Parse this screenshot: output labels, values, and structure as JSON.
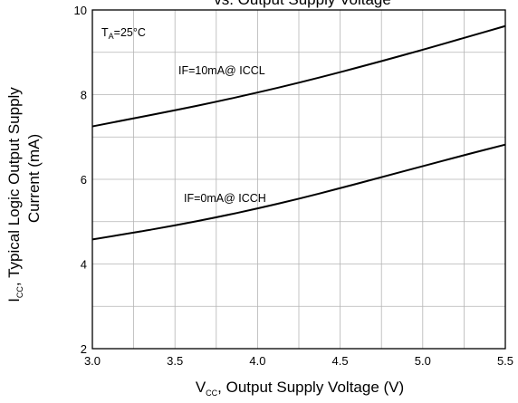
{
  "chart_data": {
    "type": "line",
    "title_partial": "vs. Output Supply Voltage",
    "condition": {
      "prefix": "T",
      "subscript": "A",
      "value": "=25°C"
    },
    "xlabel": {
      "prefix": "V",
      "subscript": "CC",
      "rest": ", Output Supply Voltage (V)"
    },
    "ylabel": {
      "line1_prefix": "I",
      "line1_subscript": "CC",
      "line1_rest": ", Typical Logic Output Supply",
      "line2": "Current (mA)"
    },
    "xlim": [
      3.0,
      5.5
    ],
    "ylim": [
      2,
      10
    ],
    "xticks": [
      "3.0",
      "3.5",
      "4.0",
      "4.5",
      "5.0",
      "5.5"
    ],
    "yticks": [
      "2",
      "4",
      "6",
      "8",
      "10"
    ],
    "grid": true,
    "series": [
      {
        "name": "IF=10mA@ ICCL",
        "x": [
          3.0,
          3.25,
          3.5,
          3.75,
          4.0,
          4.25,
          4.5,
          4.75,
          5.0,
          5.25,
          5.5
        ],
        "y": [
          7.25,
          7.44,
          7.63,
          7.83,
          8.05,
          8.28,
          8.53,
          8.79,
          9.06,
          9.34,
          9.62
        ]
      },
      {
        "name": "IF=0mA@ ICCH",
        "x": [
          3.0,
          3.25,
          3.5,
          3.75,
          4.0,
          4.25,
          4.5,
          4.75,
          5.0,
          5.25,
          5.5
        ],
        "y": [
          4.58,
          4.74,
          4.91,
          5.1,
          5.31,
          5.54,
          5.79,
          6.05,
          6.31,
          6.57,
          6.82
        ]
      }
    ]
  }
}
